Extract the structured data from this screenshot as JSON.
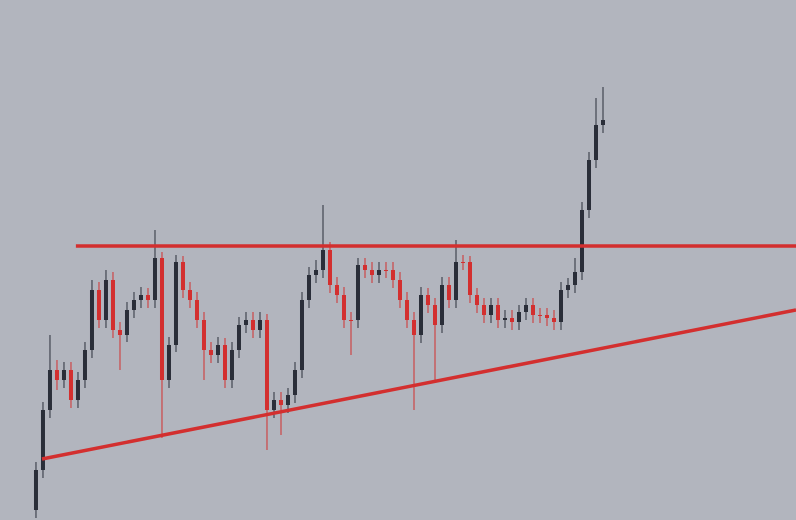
{
  "chart_data": {
    "type": "candlestick",
    "background": "#b2b5be",
    "up_color": "#2a2e39",
    "down_color": "#d32f2f",
    "xlim": [
      -5.14,
      108.57
    ],
    "ylim": [
      0,
      520
    ],
    "open": [
      10,
      50,
      110,
      150,
      140,
      150,
      120,
      140,
      170,
      230,
      200,
      240,
      190,
      185,
      210,
      220,
      225,
      220,
      262,
      140,
      175,
      258,
      230,
      220,
      200,
      170,
      165,
      175,
      140,
      170,
      195,
      200,
      190,
      200,
      110,
      120,
      115,
      125,
      150,
      220,
      245,
      250,
      270,
      235,
      225,
      200,
      200,
      255,
      250,
      245,
      250,
      250,
      240,
      220,
      200,
      185,
      225,
      215,
      195,
      235,
      220,
      258,
      258,
      225,
      215,
      205,
      215,
      200,
      202,
      198,
      208,
      215,
      205,
      205,
      202,
      198,
      230,
      235,
      248,
      310,
      360,
      395
    ],
    "high": [
      58,
      118,
      185,
      160,
      158,
      158,
      148,
      178,
      240,
      238,
      250,
      248,
      198,
      218,
      228,
      233,
      232,
      290,
      268,
      183,
      265,
      264,
      238,
      228,
      208,
      178,
      183,
      182,
      178,
      203,
      208,
      208,
      208,
      206,
      128,
      128,
      132,
      158,
      228,
      253,
      260,
      315,
      278,
      243,
      233,
      208,
      262,
      262,
      258,
      258,
      258,
      258,
      248,
      228,
      208,
      233,
      232,
      222,
      243,
      243,
      280,
      265,
      264,
      232,
      222,
      222,
      222,
      210,
      210,
      215,
      222,
      222,
      212,
      212,
      210,
      238,
      242,
      262,
      318,
      368,
      422,
      433
    ],
    "low": [
      2,
      42,
      102,
      130,
      132,
      112,
      112,
      132,
      162,
      192,
      192,
      182,
      150,
      178,
      202,
      212,
      212,
      212,
      82,
      132,
      168,
      222,
      212,
      192,
      140,
      157,
      157,
      132,
      132,
      162,
      187,
      182,
      182,
      70,
      102,
      85,
      107,
      117,
      142,
      212,
      237,
      242,
      227,
      217,
      192,
      165,
      192,
      242,
      237,
      237,
      242,
      232,
      212,
      192,
      110,
      177,
      207,
      140,
      187,
      212,
      212,
      250,
      217,
      207,
      197,
      197,
      192,
      192,
      190,
      190,
      200,
      197,
      197,
      194,
      190,
      190,
      222,
      227,
      240,
      302,
      352,
      387
    ],
    "close": [
      50,
      110,
      150,
      140,
      150,
      120,
      140,
      170,
      230,
      200,
      240,
      190,
      185,
      210,
      220,
      225,
      220,
      262,
      140,
      175,
      258,
      230,
      220,
      200,
      170,
      165,
      175,
      140,
      170,
      195,
      200,
      190,
      200,
      110,
      120,
      115,
      125,
      150,
      220,
      245,
      250,
      270,
      235,
      225,
      200,
      200,
      255,
      250,
      245,
      250,
      250,
      240,
      220,
      200,
      185,
      225,
      215,
      195,
      235,
      220,
      258,
      258,
      225,
      215,
      205,
      215,
      200,
      202,
      198,
      208,
      215,
      205,
      205,
      202,
      198,
      230,
      235,
      248,
      310,
      360,
      395,
      400
    ],
    "lines": [
      {
        "color": "#d32f2f",
        "x": [
          5.7,
          108.57
        ],
        "values": [
          274,
          274
        ]
      },
      {
        "color": "#d32f2f",
        "x": [
          0.86,
          108.57
        ],
        "values": [
          61,
          210
        ]
      }
    ]
  }
}
